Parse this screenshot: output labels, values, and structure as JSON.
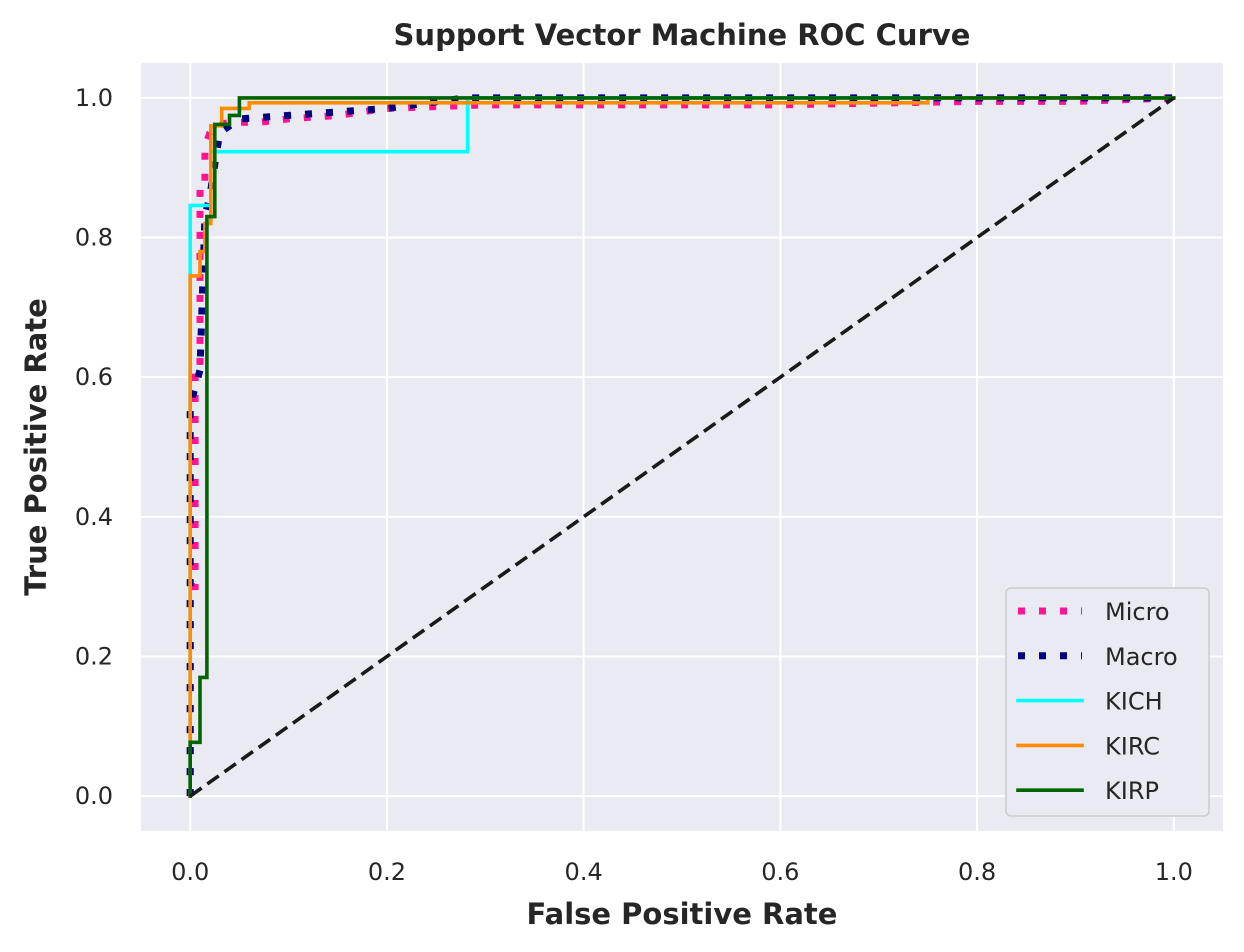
{
  "chart_data": {
    "type": "line",
    "title": "Support Vector Machine ROC Curve",
    "xlabel": "False Positive Rate",
    "ylabel": "True Positive Rate",
    "xlim": [
      -0.05,
      1.05
    ],
    "ylim": [
      -0.05,
      1.05
    ],
    "xticks": [
      0.0,
      0.2,
      0.4,
      0.6,
      0.8,
      1.0
    ],
    "yticks": [
      0.0,
      0.2,
      0.4,
      0.6,
      0.8,
      1.0
    ],
    "xtick_labels": [
      "0.0",
      "0.2",
      "0.4",
      "0.6",
      "0.8",
      "1.0"
    ],
    "ytick_labels": [
      "0.0",
      "0.2",
      "0.4",
      "0.6",
      "0.8",
      "1.0"
    ],
    "grid": true,
    "background": "#eaeaf2",
    "legend_position": "lower right",
    "series": [
      {
        "name": "Micro",
        "color": "#ff1493",
        "style": "dotted",
        "x": [
          0.0,
          0.0,
          0.005,
          0.005,
          0.01,
          0.01,
          0.015,
          0.015,
          0.02,
          0.025,
          0.04,
          0.07,
          0.1,
          0.15,
          0.2,
          0.3,
          0.38,
          0.6,
          0.8,
          0.9,
          1.0
        ],
        "y": [
          0.0,
          0.3,
          0.3,
          0.6,
          0.6,
          0.88,
          0.88,
          0.93,
          0.95,
          0.96,
          0.965,
          0.965,
          0.97,
          0.975,
          0.985,
          0.99,
          0.99,
          0.99,
          0.995,
          0.995,
          1.0
        ]
      },
      {
        "name": "Macro",
        "color": "#000080",
        "style": "dotted",
        "x": [
          0.0,
          0.0,
          0.01,
          0.015,
          0.02,
          0.03,
          0.05,
          0.1,
          0.15,
          0.2,
          0.28,
          0.5,
          0.8,
          1.0
        ],
        "y": [
          0.0,
          0.56,
          0.61,
          0.83,
          0.86,
          0.95,
          0.97,
          0.975,
          0.98,
          0.985,
          1.0,
          1.0,
          1.0,
          1.0
        ]
      },
      {
        "name": "KICH",
        "color": "#00ffff",
        "style": "solid",
        "x": [
          0.0,
          0.0,
          0.0,
          0.021,
          0.021,
          0.032,
          0.032,
          0.282,
          0.282,
          1.0
        ],
        "y": [
          0.0,
          0.77,
          0.846,
          0.846,
          0.923,
          0.923,
          0.923,
          0.923,
          1.0,
          1.0
        ]
      },
      {
        "name": "KIRC",
        "color": "#ff8c00",
        "style": "solid",
        "x": [
          0.0,
          0.0,
          0.0,
          0.01,
          0.01,
          0.015,
          0.015,
          0.021,
          0.021,
          0.032,
          0.032,
          0.06,
          0.06,
          0.75,
          0.75,
          1.0
        ],
        "y": [
          0.0,
          0.09,
          0.745,
          0.745,
          0.78,
          0.78,
          0.82,
          0.82,
          0.96,
          0.96,
          0.985,
          0.985,
          0.993,
          0.993,
          1.0,
          1.0
        ]
      },
      {
        "name": "KIRP",
        "color": "#006400",
        "style": "solid",
        "x": [
          0.0,
          0.0,
          0.01,
          0.01,
          0.017,
          0.017,
          0.025,
          0.025,
          0.04,
          0.04,
          0.05,
          0.05,
          1.0
        ],
        "y": [
          0.0,
          0.077,
          0.077,
          0.17,
          0.17,
          0.83,
          0.83,
          0.962,
          0.962,
          0.975,
          0.975,
          1.0,
          1.0
        ]
      },
      {
        "name": "",
        "color": "#1a1a1a",
        "style": "dashed",
        "x": [
          0.0,
          1.0
        ],
        "y": [
          0.0,
          1.0
        ]
      }
    ]
  }
}
